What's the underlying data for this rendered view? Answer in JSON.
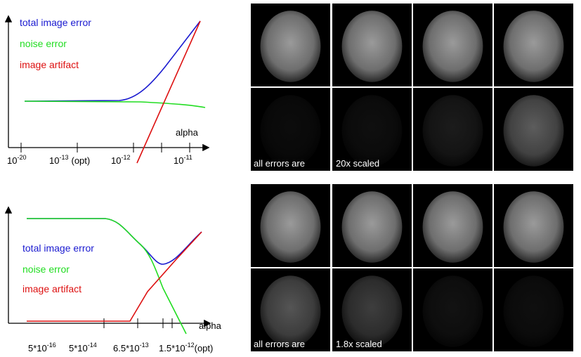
{
  "figure_top": {
    "legend": [
      "total image error",
      "noise error",
      "image artifact"
    ],
    "axis_label": "alpha",
    "ticks": [
      {
        "base": "10",
        "exp": "-20"
      },
      {
        "base": "10",
        "exp": "-13",
        "suffix": "(opt)"
      },
      {
        "base": "10",
        "exp": "-12"
      },
      {
        "base": "10",
        "exp": "-11"
      }
    ],
    "overlay": [
      "all errors are",
      "20x scaled"
    ]
  },
  "figure_bottom": {
    "legend": [
      "total image error",
      "noise error",
      "image artifact"
    ],
    "axis_label": "alpha",
    "ticks": [
      {
        "base": "5*10",
        "exp": "-16"
      },
      {
        "base": "5*10",
        "exp": "-14"
      },
      {
        "base": "6.5*10",
        "exp": "-13"
      },
      {
        "base": "1.5*10",
        "exp": "-12",
        "suffix": "(opt)"
      }
    ],
    "overlay": [
      "all errors are",
      "1.8x scaled"
    ]
  }
}
